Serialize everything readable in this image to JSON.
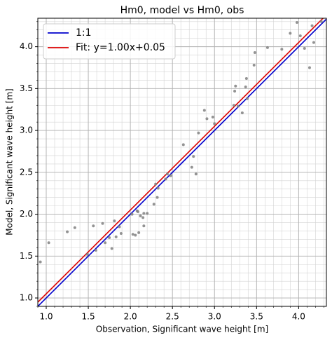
{
  "chart_data": {
    "type": "scatter",
    "title": "Hm0, model vs Hm0, obs",
    "x_label": "Observation, Significant wave height [m]",
    "y_label": "Model, Significant wave height [m]",
    "color": "gray",
    "x": [
      0.93,
      1.03,
      1.25,
      1.34,
      1.56,
      1.67,
      1.49,
      1.59,
      1.7,
      1.75,
      1.78,
      1.81,
      1.87,
      1.89,
      1.83,
      2.02,
      2.03,
      2.06,
      2.08,
      2.09,
      2.1,
      2.12,
      2.16,
      2.16,
      2.15,
      2.2,
      2.28,
      2.3,
      2.32,
      2.33,
      2.42,
      2.44,
      2.48,
      2.63,
      2.73,
      2.75,
      2.78,
      2.81,
      2.88,
      2.91,
      2.98,
      3.0,
      3.23,
      3.24,
      3.25,
      3.28,
      3.33,
      3.37,
      3.38,
      3.39,
      3.47,
      3.48,
      3.63,
      3.8,
      3.9,
      3.98,
      4.02,
      4.07,
      4.13,
      4.16,
      4.18,
      4.27
    ],
    "y": [
      1.43,
      1.66,
      1.79,
      1.84,
      1.86,
      1.89,
      1.52,
      1.57,
      1.66,
      1.72,
      1.59,
      1.92,
      1.85,
      1.77,
      1.73,
      2.0,
      1.76,
      1.75,
      2.04,
      2.03,
      1.78,
      1.98,
      2.01,
      1.86,
      1.96,
      2.01,
      2.12,
      2.36,
      2.2,
      2.31,
      2.42,
      2.48,
      2.46,
      2.83,
      2.56,
      2.69,
      2.48,
      2.97,
      3.24,
      3.14,
      3.16,
      3.08,
      3.3,
      3.47,
      3.53,
      3.29,
      3.21,
      3.52,
      3.62,
      3.38,
      3.78,
      3.93,
      3.99,
      3.97,
      4.16,
      4.29,
      4.13,
      3.98,
      3.75,
      4.25,
      4.05,
      4.3
    ],
    "lines": [
      {
        "name": "1:1",
        "color": "#0000cc",
        "slope": 1,
        "intercept": 0
      },
      {
        "name": "Fit: y=1.00x+0.05",
        "color": "#dd0000",
        "slope": 1.0,
        "intercept": 0.05
      }
    ],
    "xlim": [
      0.9,
      4.33
    ],
    "ylim": [
      0.9,
      4.34
    ],
    "xticks": [
      {
        "value": 1,
        "label": "1.0"
      },
      {
        "value": 1.5,
        "label": "1.5"
      },
      {
        "value": 2,
        "label": "2.0"
      },
      {
        "value": 2.5,
        "label": "2.5"
      },
      {
        "value": 3,
        "label": "3.0"
      },
      {
        "value": 3.5,
        "label": "3.5"
      },
      {
        "value": 4,
        "label": "4.0"
      }
    ],
    "yticks": [
      {
        "value": 1,
        "label": "1.0"
      },
      {
        "value": 1.5,
        "label": "1.5"
      },
      {
        "value": 2,
        "label": "2.0"
      },
      {
        "value": 2.5,
        "label": "2.5"
      },
      {
        "value": 3,
        "label": "3.0"
      },
      {
        "value": 3.5,
        "label": "3.5"
      },
      {
        "value": 4,
        "label": "4.0"
      }
    ],
    "grid": true,
    "minor_grid": true,
    "legend": "upper left"
  }
}
